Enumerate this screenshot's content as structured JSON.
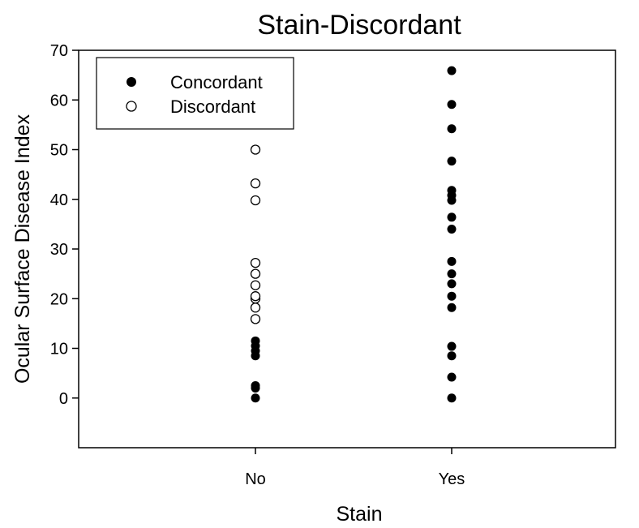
{
  "chart_data": {
    "type": "scatter",
    "title": "Stain-Discordant",
    "xlabel": "Stain",
    "ylabel": "Ocular Surface Disease Index",
    "categories": [
      "No",
      "Yes"
    ],
    "ylim": [
      -10,
      70
    ],
    "yticks": [
      0,
      10,
      20,
      30,
      40,
      50,
      60,
      70
    ],
    "legend_position": "top-left",
    "grid": false,
    "series": [
      {
        "name": "Concordant",
        "marker": "filled-circle",
        "color": "#000000",
        "points": [
          {
            "x": "No",
            "y": 0
          },
          {
            "x": "No",
            "y": 2
          },
          {
            "x": "No",
            "y": 2.5
          },
          {
            "x": "No",
            "y": 8.5
          },
          {
            "x": "No",
            "y": 9.5
          },
          {
            "x": "No",
            "y": 10.5
          },
          {
            "x": "No",
            "y": 11.5
          },
          {
            "x": "Yes",
            "y": 0
          },
          {
            "x": "Yes",
            "y": 4.2
          },
          {
            "x": "Yes",
            "y": 8.5
          },
          {
            "x": "Yes",
            "y": 10.4
          },
          {
            "x": "Yes",
            "y": 18.2
          },
          {
            "x": "Yes",
            "y": 20.5
          },
          {
            "x": "Yes",
            "y": 23
          },
          {
            "x": "Yes",
            "y": 25
          },
          {
            "x": "Yes",
            "y": 27.5
          },
          {
            "x": "Yes",
            "y": 34
          },
          {
            "x": "Yes",
            "y": 36.4
          },
          {
            "x": "Yes",
            "y": 39.8
          },
          {
            "x": "Yes",
            "y": 40.8
          },
          {
            "x": "Yes",
            "y": 41.8
          },
          {
            "x": "Yes",
            "y": 47.7
          },
          {
            "x": "Yes",
            "y": 54.2
          },
          {
            "x": "Yes",
            "y": 59.1
          },
          {
            "x": "Yes",
            "y": 65.9
          }
        ]
      },
      {
        "name": "Discordant",
        "marker": "open-circle",
        "color": "#000000",
        "points": [
          {
            "x": "No",
            "y": 15.9
          },
          {
            "x": "No",
            "y": 18.2
          },
          {
            "x": "No",
            "y": 20
          },
          {
            "x": "No",
            "y": 20.5
          },
          {
            "x": "No",
            "y": 22.7
          },
          {
            "x": "No",
            "y": 25
          },
          {
            "x": "No",
            "y": 27.2
          },
          {
            "x": "No",
            "y": 39.8
          },
          {
            "x": "No",
            "y": 43.2
          },
          {
            "x": "No",
            "y": 50
          }
        ]
      }
    ]
  }
}
